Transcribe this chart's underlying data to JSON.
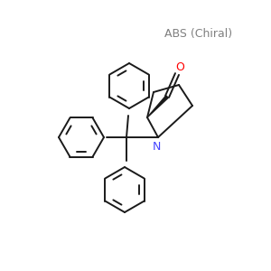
{
  "title_text": "ABS (Chiral)",
  "title_color": "#808080",
  "title_fontsize": 9,
  "N_color": "#4444FF",
  "O_color": "#FF0000",
  "bond_color": "#1a1a1a",
  "background_color": "#FFFFFF",
  "lw": 1.4,
  "ring_r": 22
}
